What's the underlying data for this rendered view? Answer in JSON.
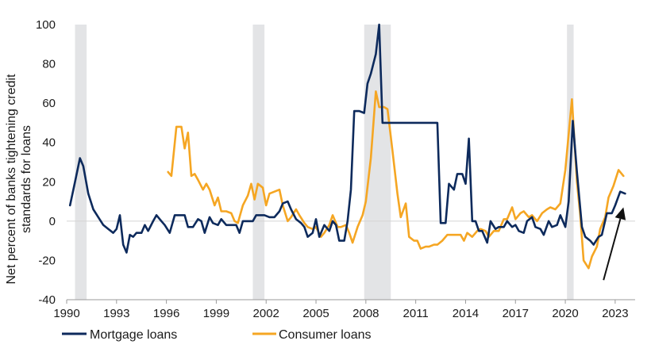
{
  "chart_data": {
    "type": "line",
    "ylabel": "Net percent of banks tightening credit standards for loans",
    "ylabel_lines": [
      "Net percent of banks tightening credit",
      "standards for loans"
    ],
    "xlim": [
      1990,
      2024.2
    ],
    "ylim": [
      -40,
      100
    ],
    "x_ticks": [
      1990,
      1993,
      1996,
      1999,
      2002,
      2005,
      2008,
      2011,
      2014,
      2017,
      2020,
      2023
    ],
    "x_tick_labels": [
      "1990",
      "1993",
      "1996",
      "1999",
      "2002",
      "2005",
      "2008",
      "2011",
      "2014",
      "2017",
      "2020",
      "2023"
    ],
    "y_ticks": [
      -40,
      -20,
      0,
      20,
      40,
      60,
      80,
      100
    ],
    "y_tick_labels": [
      "-40",
      "-20",
      "0",
      "20",
      "40",
      "60",
      "80",
      "100"
    ],
    "grid": false,
    "zero_line": true,
    "legend_position": "bottom-left",
    "recession_bands": [
      [
        1990.5,
        1991.2
      ],
      [
        2001.2,
        2001.9
      ],
      [
        2007.9,
        2009.5
      ],
      [
        2020.1,
        2020.5
      ]
    ],
    "arrow": {
      "from": [
        2022.3,
        -30
      ],
      "to": [
        2023.5,
        7
      ]
    },
    "colors": {
      "mortgage": "#0d2a5c",
      "consumer": "#f5a623",
      "recession": "#e3e4e6",
      "zero_line": "#d4d4d4",
      "arrow": "#111111"
    },
    "series": [
      {
        "name": "Mortgage loans",
        "key": "mortgage",
        "points": [
          [
            1990.2,
            8
          ],
          [
            1990.5,
            20
          ],
          [
            1990.8,
            32
          ],
          [
            1991.0,
            28
          ],
          [
            1991.3,
            14
          ],
          [
            1991.6,
            6
          ],
          [
            1991.9,
            2
          ],
          [
            1992.2,
            -2
          ],
          [
            1992.5,
            -4
          ],
          [
            1992.8,
            -6
          ],
          [
            1993.0,
            -4
          ],
          [
            1993.2,
            3
          ],
          [
            1993.4,
            -12
          ],
          [
            1993.6,
            -16
          ],
          [
            1993.8,
            -7
          ],
          [
            1994.0,
            -8
          ],
          [
            1994.2,
            -6
          ],
          [
            1994.5,
            -6
          ],
          [
            1994.7,
            -2
          ],
          [
            1994.9,
            -5
          ],
          [
            1995.2,
            0
          ],
          [
            1995.4,
            3
          ],
          [
            1995.7,
            0
          ],
          [
            1995.9,
            -2
          ],
          [
            1996.2,
            -6
          ],
          [
            1996.5,
            3
          ],
          [
            1996.8,
            3
          ],
          [
            1997.1,
            3
          ],
          [
            1997.3,
            -3
          ],
          [
            1997.6,
            -3
          ],
          [
            1997.9,
            1
          ],
          [
            1998.1,
            0
          ],
          [
            1998.3,
            -6
          ],
          [
            1998.6,
            2
          ],
          [
            1998.8,
            -1
          ],
          [
            1999.1,
            -2
          ],
          [
            1999.3,
            1
          ],
          [
            1999.6,
            -2
          ],
          [
            1999.9,
            -2
          ],
          [
            2000.2,
            -2
          ],
          [
            2000.4,
            -6
          ],
          [
            2000.6,
            0
          ],
          [
            2000.9,
            0
          ],
          [
            2001.2,
            0
          ],
          [
            2001.4,
            3
          ],
          [
            2001.7,
            3
          ],
          [
            2001.9,
            3
          ],
          [
            2002.2,
            2
          ],
          [
            2002.5,
            2
          ],
          [
            2002.8,
            5
          ],
          [
            2003.0,
            9
          ],
          [
            2003.3,
            10
          ],
          [
            2003.5,
            6
          ],
          [
            2003.8,
            1
          ],
          [
            2004.1,
            -1
          ],
          [
            2004.3,
            -3
          ],
          [
            2004.5,
            -8
          ],
          [
            2004.8,
            -6
          ],
          [
            2005.0,
            1
          ],
          [
            2005.2,
            -8
          ],
          [
            2005.5,
            -2
          ],
          [
            2005.8,
            -5
          ],
          [
            2006.0,
            0
          ],
          [
            2006.2,
            -2
          ],
          [
            2006.4,
            -10
          ],
          [
            2006.7,
            -10
          ],
          [
            2006.9,
            0
          ],
          [
            2007.1,
            16
          ],
          [
            2007.3,
            56
          ],
          [
            2007.6,
            56
          ],
          [
            2007.9,
            55
          ],
          [
            2008.1,
            70
          ],
          [
            2008.3,
            75
          ],
          [
            2008.6,
            85
          ],
          [
            2008.8,
            100
          ],
          [
            2009.0,
            50
          ],
          [
            2009.5,
            50
          ],
          [
            2010.0,
            50
          ],
          [
            2011.0,
            50
          ],
          [
            2012.0,
            50
          ],
          [
            2012.3,
            50
          ],
          [
            2012.5,
            -1
          ],
          [
            2012.8,
            -1
          ],
          [
            2013.0,
            19
          ],
          [
            2013.3,
            16
          ],
          [
            2013.5,
            24
          ],
          [
            2013.8,
            24
          ],
          [
            2014.0,
            19
          ],
          [
            2014.2,
            42
          ],
          [
            2014.4,
            0
          ],
          [
            2014.6,
            0
          ],
          [
            2014.8,
            -5
          ],
          [
            2015.0,
            -5
          ],
          [
            2015.3,
            -11
          ],
          [
            2015.5,
            0
          ],
          [
            2015.8,
            -4
          ],
          [
            2016.0,
            -3
          ],
          [
            2016.3,
            -3
          ],
          [
            2016.5,
            0
          ],
          [
            2016.8,
            -3
          ],
          [
            2017.0,
            -2
          ],
          [
            2017.2,
            -5
          ],
          [
            2017.5,
            -6
          ],
          [
            2017.7,
            0
          ],
          [
            2018.0,
            2
          ],
          [
            2018.2,
            -3
          ],
          [
            2018.5,
            -4
          ],
          [
            2018.7,
            -7
          ],
          [
            2019.0,
            0
          ],
          [
            2019.2,
            -3
          ],
          [
            2019.5,
            -2
          ],
          [
            2019.7,
            3
          ],
          [
            2020.0,
            -3
          ],
          [
            2020.2,
            10
          ],
          [
            2020.45,
            51
          ],
          [
            2020.7,
            25
          ],
          [
            2021.0,
            -3
          ],
          [
            2021.2,
            -8
          ],
          [
            2021.5,
            -10
          ],
          [
            2021.7,
            -12
          ],
          [
            2022.0,
            -8
          ],
          [
            2022.2,
            -7
          ],
          [
            2022.5,
            4
          ],
          [
            2022.8,
            4
          ],
          [
            2023.0,
            8
          ],
          [
            2023.3,
            15
          ],
          [
            2023.6,
            14
          ]
        ]
      },
      {
        "name": "Consumer loans",
        "key": "consumer",
        "points": [
          [
            1996.1,
            25
          ],
          [
            1996.3,
            23
          ],
          [
            1996.6,
            48
          ],
          [
            1996.9,
            48
          ],
          [
            1997.1,
            37
          ],
          [
            1997.3,
            45
          ],
          [
            1997.5,
            23
          ],
          [
            1997.7,
            24
          ],
          [
            1997.9,
            21
          ],
          [
            1998.2,
            16
          ],
          [
            1998.4,
            19
          ],
          [
            1998.6,
            16
          ],
          [
            1998.9,
            8
          ],
          [
            1999.1,
            12
          ],
          [
            1999.3,
            5
          ],
          [
            1999.6,
            5
          ],
          [
            1999.9,
            4
          ],
          [
            2000.1,
            0
          ],
          [
            2000.3,
            -1
          ],
          [
            2000.6,
            8
          ],
          [
            2000.9,
            13
          ],
          [
            2001.1,
            19
          ],
          [
            2001.3,
            11
          ],
          [
            2001.5,
            19
          ],
          [
            2001.8,
            17
          ],
          [
            2002.0,
            8
          ],
          [
            2002.2,
            14
          ],
          [
            2002.5,
            15
          ],
          [
            2002.8,
            16
          ],
          [
            2003.0,
            8
          ],
          [
            2003.3,
            0
          ],
          [
            2003.5,
            2
          ],
          [
            2003.8,
            6
          ],
          [
            2004.0,
            3
          ],
          [
            2004.3,
            -1
          ],
          [
            2004.5,
            -3
          ],
          [
            2004.8,
            -4
          ],
          [
            2005.0,
            -3
          ],
          [
            2005.3,
            -8
          ],
          [
            2005.5,
            -6
          ],
          [
            2005.8,
            -2
          ],
          [
            2006.0,
            3
          ],
          [
            2006.3,
            -3
          ],
          [
            2006.5,
            -3
          ],
          [
            2006.8,
            -2
          ],
          [
            2007.0,
            -6
          ],
          [
            2007.2,
            -11
          ],
          [
            2007.5,
            -3
          ],
          [
            2007.8,
            3
          ],
          [
            2008.0,
            10
          ],
          [
            2008.3,
            32
          ],
          [
            2008.6,
            66
          ],
          [
            2008.8,
            58
          ],
          [
            2009.1,
            58
          ],
          [
            2009.3,
            57
          ],
          [
            2009.6,
            36
          ],
          [
            2009.9,
            14
          ],
          [
            2010.1,
            2
          ],
          [
            2010.4,
            9
          ],
          [
            2010.6,
            -8
          ],
          [
            2010.9,
            -10
          ],
          [
            2011.1,
            -10
          ],
          [
            2011.3,
            -14
          ],
          [
            2011.6,
            -13
          ],
          [
            2011.8,
            -13
          ],
          [
            2012.1,
            -12
          ],
          [
            2012.3,
            -12
          ],
          [
            2012.6,
            -10
          ],
          [
            2012.9,
            -7
          ],
          [
            2013.1,
            -7
          ],
          [
            2013.4,
            -7
          ],
          [
            2013.7,
            -7
          ],
          [
            2013.9,
            -10
          ],
          [
            2014.1,
            -6
          ],
          [
            2014.4,
            -8
          ],
          [
            2014.7,
            -5
          ],
          [
            2014.9,
            -4
          ],
          [
            2015.2,
            -5
          ],
          [
            2015.4,
            -8
          ],
          [
            2015.7,
            -5
          ],
          [
            2016.0,
            -5
          ],
          [
            2016.3,
            1
          ],
          [
            2016.5,
            1
          ],
          [
            2016.8,
            7
          ],
          [
            2017.0,
            1
          ],
          [
            2017.3,
            4
          ],
          [
            2017.5,
            5
          ],
          [
            2017.8,
            2
          ],
          [
            2018.0,
            3
          ],
          [
            2018.3,
            0
          ],
          [
            2018.6,
            4
          ],
          [
            2018.9,
            6
          ],
          [
            2019.1,
            7
          ],
          [
            2019.4,
            6
          ],
          [
            2019.7,
            9
          ],
          [
            2020.0,
            26
          ],
          [
            2020.4,
            62
          ],
          [
            2020.7,
            20
          ],
          [
            2020.9,
            3
          ],
          [
            2021.1,
            -20
          ],
          [
            2021.4,
            -24
          ],
          [
            2021.6,
            -18
          ],
          [
            2021.9,
            -13
          ],
          [
            2022.1,
            -4
          ],
          [
            2022.4,
            2
          ],
          [
            2022.6,
            12
          ],
          [
            2022.9,
            18
          ],
          [
            2023.2,
            26
          ],
          [
            2023.5,
            23
          ]
        ]
      }
    ]
  }
}
